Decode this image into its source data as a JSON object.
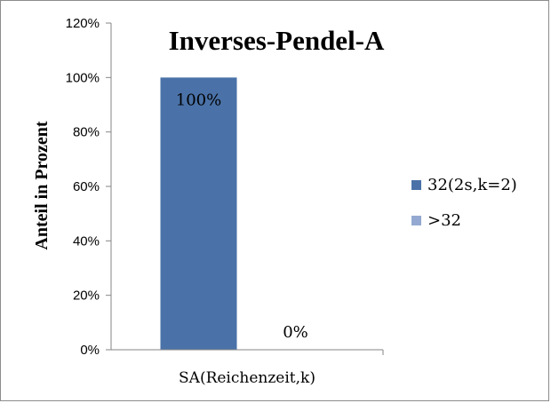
{
  "chart_data": {
    "type": "bar",
    "title": "Inverses-Pendel-A",
    "ylabel": "Anteil in Prozent",
    "xlabel": "",
    "categories": [
      "SA(Reichenzeit,k)"
    ],
    "series": [
      {
        "name": "32(2s,k=2)",
        "values": [
          100
        ],
        "data_labels": [
          "100%"
        ],
        "color": "#4a72a8"
      },
      {
        "name": ">32",
        "values": [
          0
        ],
        "data_labels": [
          "0%"
        ],
        "color": "#93a9d1"
      }
    ],
    "ylim": [
      0,
      120
    ],
    "y_ticks": [
      "0%",
      "20%",
      "40%",
      "60%",
      "80%",
      "100%",
      "120%"
    ],
    "y_tick_values": [
      0,
      20,
      40,
      60,
      80,
      100,
      120
    ],
    "grid": false,
    "legend_position": "right"
  }
}
